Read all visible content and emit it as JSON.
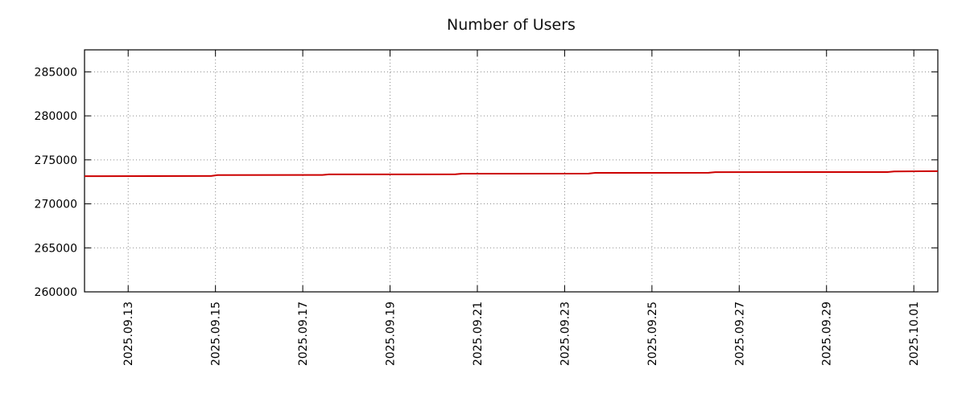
{
  "chart_data": {
    "type": "line",
    "title": "Number of Users",
    "xlabel": "",
    "ylabel": "",
    "legend_position": "none",
    "grid": true,
    "grid_color": "#8a8a8a",
    "axis_color": "#000000",
    "background_color": "#ffffff",
    "x_tick_labels": [
      "2025.09.13",
      "2025.09.15",
      "2025.09.17",
      "2025.09.19",
      "2025.09.21",
      "2025.09.23",
      "2025.09.25",
      "2025.09.27",
      "2025.09.29",
      "2025.10.01"
    ],
    "x_tick_positions_days": [
      1,
      3,
      5,
      7,
      9,
      11,
      13,
      15,
      17,
      19
    ],
    "x_range_days": [
      0,
      19.55
    ],
    "y_ticks": [
      260000,
      265000,
      270000,
      275000,
      280000,
      285000
    ],
    "ylim": [
      260000,
      287500
    ],
    "series": [
      {
        "name": "Number of Users",
        "color": "#cc0000",
        "points": [
          [
            0.0,
            273150
          ],
          [
            2.9,
            273165
          ],
          [
            3.05,
            273270
          ],
          [
            5.45,
            273280
          ],
          [
            5.6,
            273350
          ],
          [
            8.5,
            273360
          ],
          [
            8.65,
            273430
          ],
          [
            11.55,
            273440
          ],
          [
            11.7,
            273520
          ],
          [
            14.3,
            273530
          ],
          [
            14.45,
            273600
          ],
          [
            18.4,
            273615
          ],
          [
            18.55,
            273690
          ],
          [
            19.55,
            273710
          ]
        ]
      }
    ]
  }
}
